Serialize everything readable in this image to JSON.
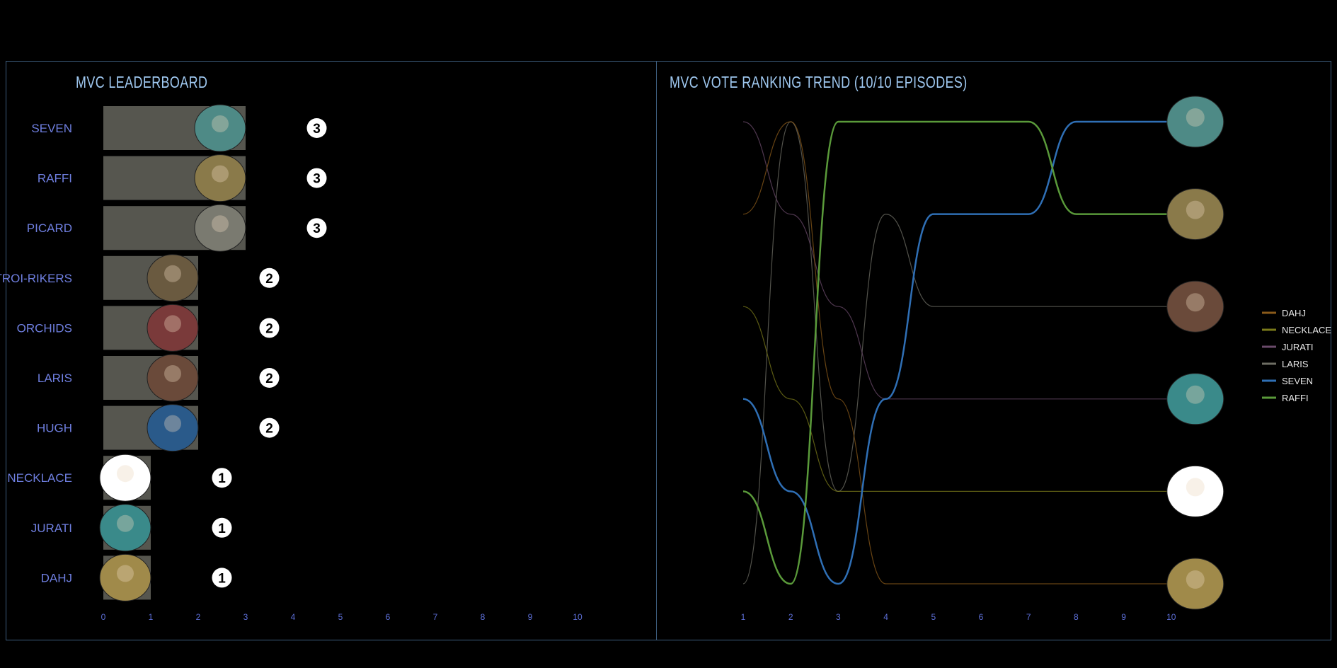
{
  "leaderboard": {
    "title": "MVC LEADERBOARD"
  },
  "trend": {
    "title": "MVC VOTE RANKING TREND (10/10 EPISODES)"
  },
  "chart_data": [
    {
      "type": "bar",
      "orientation": "horizontal",
      "title": "MVC LEADERBOARD",
      "categories": [
        "SEVEN",
        "RAFFI",
        "PICARD",
        "TROI-RIKERS",
        "ORCHIDS",
        "LARIS",
        "HUGH",
        "NECKLACE",
        "JURATI",
        "DAHJ"
      ],
      "values": [
        3,
        3,
        3,
        2,
        2,
        2,
        2,
        1,
        1,
        1
      ],
      "xlim": [
        0,
        10
      ],
      "xticks": [
        "0",
        "1",
        "2",
        "3",
        "4",
        "5",
        "6",
        "7",
        "8",
        "9",
        "10"
      ],
      "bar_color": "#56564f",
      "avatar_colors": [
        "#4e8a86",
        "#8a7a4a",
        "#7a7a70",
        "#6a5a40",
        "#7a3a3a",
        "#6a4a3a",
        "#2a5a8a",
        "#ffffff",
        "#3a8a8a",
        "#a08a4a"
      ]
    },
    {
      "type": "line",
      "style": "bump",
      "title": "MVC VOTE RANKING TREND (10/10 EPISODES)",
      "x": [
        1,
        2,
        3,
        4,
        5,
        6,
        7,
        8,
        9,
        10
      ],
      "xticks": [
        "1",
        "2",
        "3",
        "4",
        "5",
        "6",
        "7",
        "8",
        "9",
        "10"
      ],
      "rank_direction": "1 = top",
      "series": [
        {
          "name": "DAHJ",
          "color": "#8a5a1a",
          "ranks": [
            2,
            1,
            4,
            6,
            6,
            6,
            6,
            6,
            6,
            6
          ]
        },
        {
          "name": "NECKLACE",
          "color": "#7a7a1a",
          "ranks": [
            3,
            4,
            5,
            5,
            5,
            5,
            5,
            5,
            5,
            5
          ]
        },
        {
          "name": "JURATI",
          "color": "#6a4a6a",
          "ranks": [
            1,
            2,
            3,
            4,
            4,
            4,
            4,
            4,
            4,
            4
          ]
        },
        {
          "name": "LARIS",
          "color": "#6e6e64",
          "ranks": [
            6,
            1,
            5,
            2,
            3,
            3,
            3,
            3,
            3,
            3
          ]
        },
        {
          "name": "SEVEN",
          "color": "#2f6fb5",
          "ranks": [
            4,
            5,
            6,
            4,
            2,
            2,
            2,
            1,
            1,
            1
          ]
        },
        {
          "name": "RAFFI",
          "color": "#5a9a3a",
          "ranks": [
            5,
            6,
            1,
            1,
            1,
            1,
            1,
            2,
            2,
            2
          ]
        }
      ],
      "end_avatar_colors": [
        "#4e8a86",
        "#8a7a4a",
        "#6a4a3a",
        "#3a8a8a",
        "#ffffff",
        "#a08a4a"
      ],
      "legend": "right"
    }
  ]
}
